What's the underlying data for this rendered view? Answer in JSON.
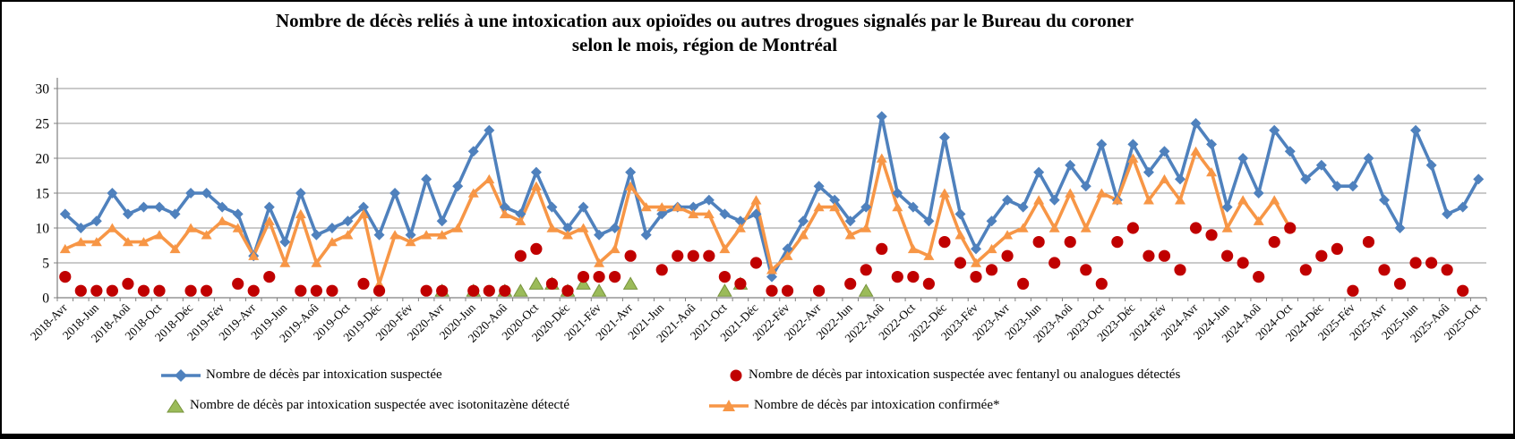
{
  "title": {
    "line1": "Nombre de décès reliés à une intoxication aux opioïdes  ou autres drogues signalés par le Bureau du coroner",
    "line2": "selon le mois, région de Montréal"
  },
  "y_axis": {
    "min": 0,
    "max": 30,
    "step": 5,
    "ticks": [
      "0",
      "5",
      "10",
      "15",
      "20",
      "25",
      "30"
    ]
  },
  "x_axis": {
    "label_every": 2,
    "labels": [
      "2018-Avr",
      "2018-Jun",
      "2018-Aoû",
      "2018-Oct",
      "2018-Déc",
      "2019-Fév",
      "2019-Avr",
      "2019-Jun",
      "2019-Aoû",
      "2019-Oct",
      "2019-Déc",
      "2020-Fév",
      "2020-Avr",
      "2020-Jun",
      "2020-Aoû",
      "2020-Oct",
      "2020-Déc",
      "2021-Fév",
      "2021-Avr",
      "2021-Jun",
      "2021-Aoû",
      "2021-Oct",
      "2021-Déc",
      "2022-Fév",
      "2022-Avr",
      "2022-Jun",
      "2022-Aoû",
      "2022-Oct",
      "2022-Déc",
      "2023-Fév",
      "2023-Avr",
      "2023-Jun",
      "2023-Aoû",
      "2023-Oct",
      "2023-Déc",
      "2024-Fév",
      "2024-Avr",
      "2024-Jun",
      "2024-Aoû",
      "2024-Oct",
      "2024-Déc",
      "2025-Fév",
      "2025-Avr",
      "2025-Jun",
      "2025-Aoû",
      "2025-Oct"
    ]
  },
  "colors": {
    "blue": "#4F81BD",
    "red": "#C00000",
    "green": "#9BBB59",
    "green_edge": "#77933C",
    "orange": "#F79646",
    "gridline": "#969696",
    "axis": "#808080"
  },
  "chart_data": {
    "type": "line",
    "title": "Nombre de décès reliés à une intoxication aux opioïdes ou autres drogues signalés par le Bureau du coroner selon le mois, région de Montréal",
    "xlabel": "",
    "ylabel": "",
    "ylim": [
      0,
      30
    ],
    "grid": true,
    "legend_position": "bottom",
    "x": [
      "2018-Avr",
      "2018-Mai",
      "2018-Jun",
      "2018-Jul",
      "2018-Aoû",
      "2018-Sep",
      "2018-Oct",
      "2018-Nov",
      "2018-Déc",
      "2019-Jan",
      "2019-Fév",
      "2019-Mar",
      "2019-Avr",
      "2019-Mai",
      "2019-Jun",
      "2019-Jul",
      "2019-Aoû",
      "2019-Sep",
      "2019-Oct",
      "2019-Nov",
      "2019-Déc",
      "2020-Jan",
      "2020-Fév",
      "2020-Mar",
      "2020-Avr",
      "2020-Mai",
      "2020-Jun",
      "2020-Jul",
      "2020-Aoû",
      "2020-Sep",
      "2020-Oct",
      "2020-Nov",
      "2020-Déc",
      "2021-Jan",
      "2021-Fév",
      "2021-Mar",
      "2021-Avr",
      "2021-Mai",
      "2021-Jun",
      "2021-Jul",
      "2021-Aoû",
      "2021-Sep",
      "2021-Oct",
      "2021-Nov",
      "2021-Déc",
      "2022-Jan",
      "2022-Fév",
      "2022-Mar",
      "2022-Avr",
      "2022-Mai",
      "2022-Jun",
      "2022-Jul",
      "2022-Aoû",
      "2022-Sep",
      "2022-Oct",
      "2022-Nov",
      "2022-Déc",
      "2023-Jan",
      "2023-Fév",
      "2023-Mar",
      "2023-Avr",
      "2023-Mai",
      "2023-Jun",
      "2023-Jul",
      "2023-Aoû",
      "2023-Sep",
      "2023-Oct",
      "2023-Nov",
      "2023-Déc",
      "2024-Jan",
      "2024-Fév",
      "2024-Mar",
      "2024-Avr",
      "2024-Mai",
      "2024-Jun",
      "2024-Jul",
      "2024-Aoû",
      "2024-Sep",
      "2024-Oct",
      "2024-Nov",
      "2024-Déc",
      "2025-Jan",
      "2025-Fév",
      "2025-Mar",
      "2025-Avr",
      "2025-Mai",
      "2025-Jun",
      "2025-Jul",
      "2025-Aoû",
      "2025-Sep",
      "2025-Oct"
    ],
    "series": [
      {
        "name": "Nombre de décès par intoxication suspectée",
        "color": "#4F81BD",
        "marker": "diamond",
        "line": true,
        "values": [
          12,
          10,
          11,
          15,
          12,
          13,
          13,
          12,
          15,
          15,
          13,
          12,
          6,
          13,
          8,
          15,
          9,
          10,
          11,
          13,
          9,
          15,
          9,
          17,
          11,
          16,
          21,
          24,
          13,
          12,
          18,
          13,
          10,
          13,
          9,
          10,
          18,
          9,
          12,
          13,
          13,
          14,
          12,
          11,
          12,
          3,
          7,
          11,
          16,
          14,
          11,
          13,
          26,
          15,
          13,
          11,
          23,
          12,
          7,
          11,
          14,
          13,
          18,
          14,
          19,
          16,
          22,
          14,
          22,
          18,
          21,
          17,
          25,
          22,
          13,
          20,
          15,
          24,
          21,
          17,
          19,
          16,
          16,
          20,
          14,
          10,
          24,
          19,
          12,
          13,
          17
        ]
      },
      {
        "name": "Nombre de décès par intoxication suspectée avec fentanyl ou analogues détectés",
        "color": "#C00000",
        "marker": "circle",
        "line": false,
        "values": [
          3,
          1,
          1,
          1,
          2,
          1,
          1,
          null,
          1,
          1,
          null,
          2,
          1,
          3,
          null,
          1,
          1,
          1,
          null,
          2,
          1,
          null,
          null,
          1,
          1,
          null,
          1,
          1,
          1,
          6,
          7,
          2,
          1,
          3,
          3,
          3,
          6,
          null,
          4,
          6,
          6,
          6,
          3,
          2,
          5,
          1,
          1,
          null,
          1,
          null,
          2,
          4,
          7,
          3,
          3,
          2,
          8,
          5,
          3,
          4,
          6,
          2,
          8,
          5,
          8,
          4,
          2,
          8,
          10,
          6,
          6,
          4,
          10,
          9,
          6,
          5,
          3,
          8,
          10,
          4,
          6,
          7,
          1,
          8,
          4,
          2,
          5,
          5,
          4,
          1,
          null
        ]
      },
      {
        "name": "Nombre de décès par intoxication suspectée avec isotonitazène détecté",
        "color": "#9BBB59",
        "marker": "triangle",
        "line": false,
        "values": [
          null,
          null,
          null,
          null,
          null,
          null,
          null,
          null,
          null,
          null,
          null,
          null,
          null,
          null,
          null,
          null,
          null,
          null,
          null,
          null,
          null,
          null,
          null,
          null,
          1,
          null,
          1,
          null,
          1,
          1,
          2,
          2,
          1,
          2,
          1,
          null,
          2,
          null,
          null,
          null,
          null,
          null,
          1,
          2,
          null,
          null,
          null,
          null,
          null,
          null,
          null,
          1,
          null,
          null,
          null,
          null,
          null,
          null,
          null,
          null,
          null,
          null,
          null,
          null,
          null,
          null,
          null,
          null,
          null,
          null,
          null,
          null,
          null,
          null,
          null,
          null,
          null,
          null,
          null,
          null,
          null,
          null,
          null,
          null,
          null,
          null,
          null,
          null,
          null,
          null,
          null
        ]
      },
      {
        "name": "Nombre de décès par intoxication confirmée*",
        "color": "#F79646",
        "marker": "triangle",
        "line": true,
        "values": [
          7,
          8,
          8,
          10,
          8,
          8,
          9,
          7,
          10,
          9,
          11,
          10,
          6,
          11,
          5,
          12,
          5,
          8,
          9,
          12,
          2,
          9,
          8,
          9,
          9,
          10,
          15,
          17,
          12,
          11,
          16,
          10,
          9,
          10,
          5,
          7,
          16,
          13,
          13,
          13,
          12,
          12,
          7,
          10,
          14,
          4,
          6,
          9,
          13,
          13,
          9,
          10,
          20,
          13,
          7,
          6,
          15,
          9,
          5,
          7,
          9,
          10,
          14,
          10,
          15,
          10,
          15,
          14,
          20,
          14,
          17,
          14,
          21,
          18,
          10,
          14,
          11,
          14,
          10,
          null,
          null,
          null,
          null,
          null,
          null,
          null,
          null,
          null,
          null,
          null,
          null
        ]
      }
    ]
  }
}
